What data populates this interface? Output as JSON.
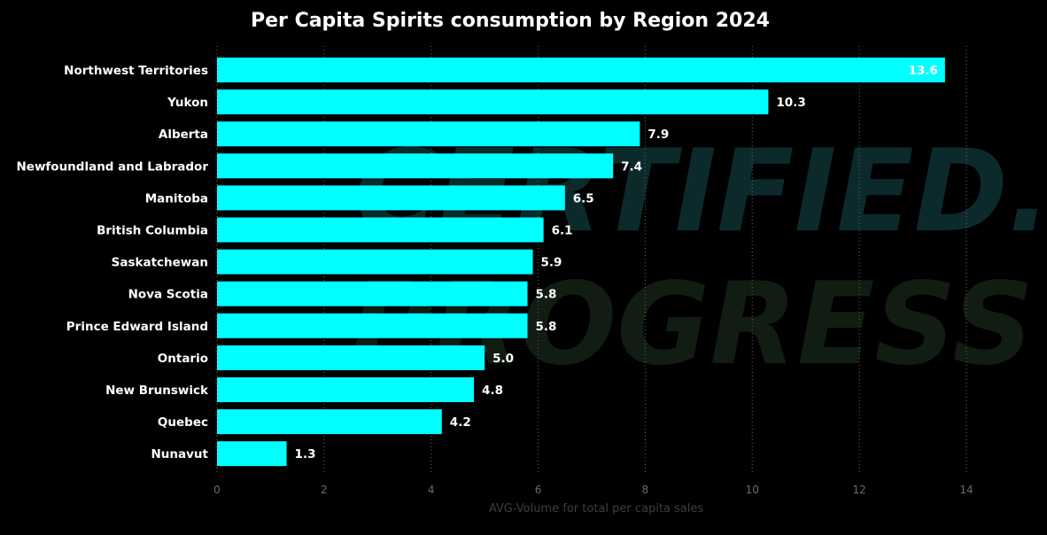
{
  "chart_data": {
    "type": "bar",
    "orientation": "horizontal",
    "title": "Per Capita Spirits consumption by Region 2024",
    "xlabel": "AVG-Volume for total per capita sales",
    "ylabel": "",
    "xlim": [
      0,
      14
    ],
    "x_ticks": [
      0,
      2,
      4,
      6,
      8,
      10,
      12,
      14
    ],
    "grid": "vertical-dotted",
    "bar_color": "#00FFFF",
    "background": "#000000",
    "categories": [
      "Northwest Territories",
      "Yukon",
      "Alberta",
      "Newfoundland and Labrador",
      "Manitoba",
      "British Columbia",
      "Saskatchewan",
      "Nova Scotia",
      "Prince Edward Island",
      "Ontario",
      "New Brunswick",
      "Quebec",
      "Nunavut"
    ],
    "values": [
      13.6,
      10.3,
      7.9,
      7.4,
      6.5,
      6.1,
      5.9,
      5.8,
      5.8,
      5.0,
      4.8,
      4.2,
      1.3
    ],
    "value_labels": [
      "13.6",
      "10.3",
      "7.9",
      "7.4",
      "6.5",
      "6.1",
      "5.9",
      "5.8",
      "5.8",
      "5.0",
      "4.8",
      "4.2",
      "1.3"
    ]
  },
  "watermark": {
    "line1": "CERTIFIED.",
    "line2": "PROGRESS"
  }
}
